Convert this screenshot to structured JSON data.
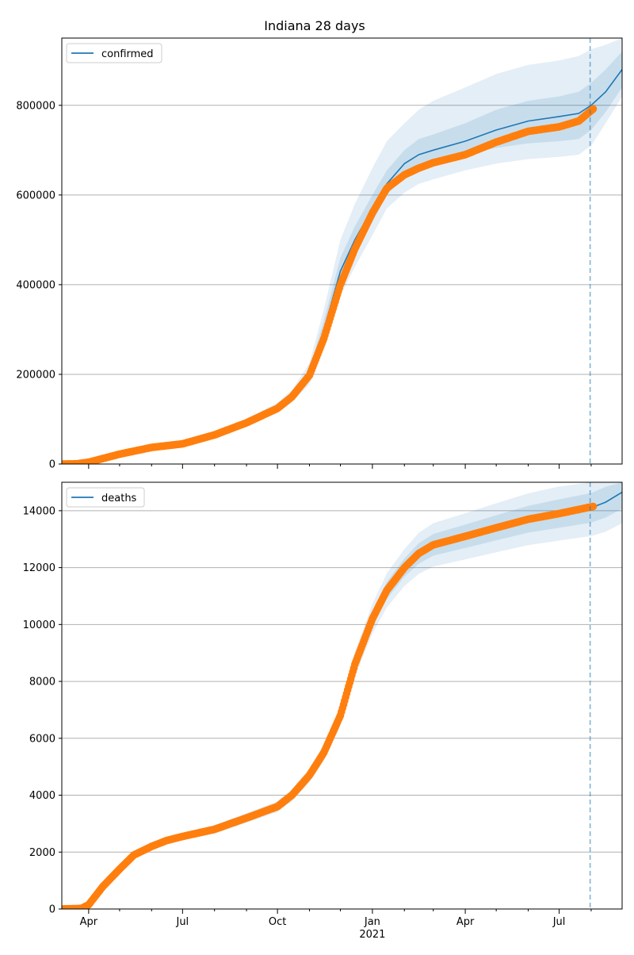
{
  "figure": {
    "title": "Indiana 28 days"
  },
  "colors": {
    "model_line": "#1f77b4",
    "band": "#1f77b4",
    "observed": "#ff7f0e",
    "grid": "#b0b0b0",
    "forecast_marker": "#1f77b4"
  },
  "chart_data": [
    {
      "type": "line",
      "title": "Indiana 28 days",
      "series_name": "confirmed",
      "ylim": [
        0,
        950000
      ],
      "yticks": [
        0,
        200000,
        400000,
        600000,
        800000
      ],
      "ytick_labels": [
        "0",
        "200000",
        "400000",
        "600000",
        "800000"
      ],
      "grid": "horizontal",
      "legend": "top-left",
      "x_dates": [
        "2020-03-06",
        "2020-04-01",
        "2020-05-01",
        "2020-06-01",
        "2020-07-01",
        "2020-08-01",
        "2020-09-01",
        "2020-10-01",
        "2020-10-15",
        "2020-11-01",
        "2020-11-15",
        "2020-12-01",
        "2020-12-15",
        "2021-01-01",
        "2021-01-15",
        "2021-02-01",
        "2021-02-15",
        "2021-03-01",
        "2021-04-01",
        "2021-05-01",
        "2021-06-01",
        "2021-07-01",
        "2021-07-20",
        "2021-08-01",
        "2021-08-15",
        "2021-08-31"
      ],
      "model": [
        0,
        4000,
        22000,
        38000,
        46000,
        66000,
        93000,
        125000,
        150000,
        200000,
        300000,
        430000,
        500000,
        570000,
        625000,
        670000,
        690000,
        700000,
        720000,
        745000,
        765000,
        775000,
        782000,
        800000,
        830000,
        880000
      ],
      "band_inner": [
        [
          0,
          0
        ],
        [
          3500,
          4500
        ],
        [
          21000,
          23000
        ],
        [
          36000,
          40000
        ],
        [
          44000,
          48000
        ],
        [
          63000,
          69000
        ],
        [
          89000,
          97000
        ],
        [
          119000,
          131000
        ],
        [
          143000,
          157000
        ],
        [
          188000,
          212000
        ],
        [
          280000,
          320000
        ],
        [
          400000,
          460000
        ],
        [
          470000,
          530000
        ],
        [
          540000,
          600000
        ],
        [
          600000,
          655000
        ],
        [
          640000,
          700000
        ],
        [
          660000,
          725000
        ],
        [
          670000,
          735000
        ],
        [
          690000,
          760000
        ],
        [
          705000,
          790000
        ],
        [
          715000,
          810000
        ],
        [
          720000,
          820000
        ],
        [
          725000,
          830000
        ],
        [
          745000,
          850000
        ],
        [
          785000,
          880000
        ],
        [
          840000,
          920000
        ]
      ],
      "band_outer": [
        [
          0,
          0
        ],
        [
          3000,
          5000
        ],
        [
          20000,
          24000
        ],
        [
          35000,
          41000
        ],
        [
          43000,
          50000
        ],
        [
          61000,
          72000
        ],
        [
          85000,
          101000
        ],
        [
          114000,
          137000
        ],
        [
          137000,
          165000
        ],
        [
          178000,
          225000
        ],
        [
          260000,
          345000
        ],
        [
          375000,
          500000
        ],
        [
          440000,
          580000
        ],
        [
          510000,
          660000
        ],
        [
          570000,
          720000
        ],
        [
          605000,
          760000
        ],
        [
          625000,
          790000
        ],
        [
          635000,
          810000
        ],
        [
          655000,
          840000
        ],
        [
          670000,
          870000
        ],
        [
          680000,
          890000
        ],
        [
          685000,
          900000
        ],
        [
          690000,
          910000
        ],
        [
          710000,
          925000
        ],
        [
          760000,
          935000
        ],
        [
          820000,
          950000
        ]
      ],
      "observed": {
        "start": "2020-03-06",
        "end": "2021-08-03",
        "x_dates": [
          "2020-03-06",
          "2020-03-20",
          "2020-04-01",
          "2020-05-01",
          "2020-06-01",
          "2020-07-01",
          "2020-08-01",
          "2020-09-01",
          "2020-10-01",
          "2020-10-15",
          "2020-11-01",
          "2020-11-15",
          "2020-12-01",
          "2020-12-15",
          "2021-01-01",
          "2021-01-15",
          "2021-02-01",
          "2021-02-15",
          "2021-03-01",
          "2021-04-01",
          "2021-05-01",
          "2021-06-01",
          "2021-07-01",
          "2021-07-20",
          "2021-08-03"
        ],
        "values": [
          0,
          300,
          4000,
          22000,
          37000,
          45000,
          65000,
          92000,
          124000,
          150000,
          198000,
          280000,
          400000,
          480000,
          560000,
          615000,
          645000,
          660000,
          672000,
          690000,
          718000,
          742000,
          752000,
          765000,
          792000
        ]
      },
      "forecast_start": "2021-07-31"
    },
    {
      "type": "line",
      "series_name": "deaths",
      "ylim": [
        0,
        15000
      ],
      "yticks": [
        0,
        2000,
        4000,
        6000,
        8000,
        10000,
        12000,
        14000
      ],
      "ytick_labels": [
        "0",
        "2000",
        "4000",
        "6000",
        "8000",
        "10000",
        "12000",
        "14000"
      ],
      "grid": "horizontal",
      "legend": "top-left",
      "x_dates": [
        "2020-03-06",
        "2020-03-25",
        "2020-04-01",
        "2020-04-15",
        "2020-05-01",
        "2020-05-15",
        "2020-06-01",
        "2020-06-15",
        "2020-07-01",
        "2020-08-01",
        "2020-09-01",
        "2020-10-01",
        "2020-10-15",
        "2020-11-01",
        "2020-11-15",
        "2020-12-01",
        "2020-12-15",
        "2021-01-01",
        "2021-01-15",
        "2021-02-01",
        "2021-02-15",
        "2021-03-01",
        "2021-04-01",
        "2021-05-01",
        "2021-06-01",
        "2021-07-01",
        "2021-08-01",
        "2021-08-15",
        "2021-08-31"
      ],
      "model": [
        0,
        20,
        150,
        800,
        1400,
        1900,
        2200,
        2400,
        2550,
        2800,
        3200,
        3600,
        4000,
        4700,
        5500,
        6800,
        8600,
        10200,
        11200,
        12000,
        12500,
        12800,
        13100,
        13400,
        13700,
        13900,
        14100,
        14300,
        14650
      ],
      "band_inner": [
        [
          0,
          0
        ],
        [
          18,
          22
        ],
        [
          140,
          160
        ],
        [
          780,
          820
        ],
        [
          1370,
          1430
        ],
        [
          1860,
          1940
        ],
        [
          2150,
          2250
        ],
        [
          2340,
          2460
        ],
        [
          2480,
          2620
        ],
        [
          2720,
          2880
        ],
        [
          3110,
          3290
        ],
        [
          3500,
          3700
        ],
        [
          3890,
          4110
        ],
        [
          4580,
          4820
        ],
        [
          5360,
          5640
        ],
        [
          6630,
          6970
        ],
        [
          8380,
          8820
        ],
        [
          9940,
          10460
        ],
        [
          10900,
          11500
        ],
        [
          11680,
          12320
        ],
        [
          12140,
          12860
        ],
        [
          12420,
          13180
        ],
        [
          12690,
          13510
        ],
        [
          12960,
          13840
        ],
        [
          13230,
          14170
        ],
        [
          13400,
          14400
        ],
        [
          13580,
          14620
        ],
        [
          13760,
          14840
        ],
        [
          14070,
          15000
        ]
      ],
      "band_outer": [
        [
          0,
          0
        ],
        [
          15,
          25
        ],
        [
          130,
          170
        ],
        [
          760,
          840
        ],
        [
          1340,
          1460
        ],
        [
          1820,
          1980
        ],
        [
          2100,
          2300
        ],
        [
          2290,
          2510
        ],
        [
          2420,
          2680
        ],
        [
          2650,
          2950
        ],
        [
          3030,
          3370
        ],
        [
          3410,
          3790
        ],
        [
          3790,
          4210
        ],
        [
          4460,
          4940
        ],
        [
          5210,
          5790
        ],
        [
          6450,
          7150
        ],
        [
          8160,
          9040
        ],
        [
          9680,
          10720
        ],
        [
          10600,
          11800
        ],
        [
          11350,
          12650
        ],
        [
          11780,
          13220
        ],
        [
          12040,
          13560
        ],
        [
          12290,
          13910
        ],
        [
          12540,
          14260
        ],
        [
          12790,
          14610
        ],
        [
          12950,
          14850
        ],
        [
          13110,
          15000
        ],
        [
          13260,
          15000
        ],
        [
          13560,
          15000
        ]
      ],
      "observed": {
        "start": "2020-03-06",
        "end": "2021-08-03",
        "x_dates": [
          "2020-03-06",
          "2020-03-25",
          "2020-04-01",
          "2020-04-15",
          "2020-05-01",
          "2020-05-15",
          "2020-06-01",
          "2020-06-15",
          "2020-07-01",
          "2020-08-01",
          "2020-09-01",
          "2020-10-01",
          "2020-10-15",
          "2020-11-01",
          "2020-11-15",
          "2020-12-01",
          "2020-12-15",
          "2021-01-01",
          "2021-01-15",
          "2021-02-01",
          "2021-02-15",
          "2021-03-01",
          "2021-04-01",
          "2021-05-01",
          "2021-06-01",
          "2021-07-01",
          "2021-08-03"
        ],
        "values": [
          0,
          20,
          150,
          800,
          1400,
          1900,
          2200,
          2400,
          2550,
          2800,
          3200,
          3600,
          4000,
          4700,
          5500,
          6800,
          8600,
          10200,
          11200,
          12000,
          12500,
          12800,
          13100,
          13400,
          13700,
          13900,
          14150
        ]
      },
      "forecast_start": "2021-07-31"
    }
  ],
  "xaxis": {
    "range": [
      "2020-03-06",
      "2021-08-31"
    ],
    "major_ticks": [
      {
        "date": "2020-04-01",
        "label": "Apr"
      },
      {
        "date": "2020-07-01",
        "label": "Jul"
      },
      {
        "date": "2020-10-01",
        "label": "Oct"
      },
      {
        "date": "2021-01-01",
        "label": "Jan"
      },
      {
        "date": "2021-04-01",
        "label": "Apr"
      },
      {
        "date": "2021-07-01",
        "label": "Jul"
      }
    ],
    "year_label": {
      "date": "2021-01-01",
      "label": "2021"
    },
    "minor_ticks": [
      "2020-05-01",
      "2020-06-01",
      "2020-08-01",
      "2020-09-01",
      "2020-11-01",
      "2020-12-01",
      "2021-02-01",
      "2021-03-01",
      "2021-05-01",
      "2021-06-01",
      "2021-08-01"
    ]
  }
}
